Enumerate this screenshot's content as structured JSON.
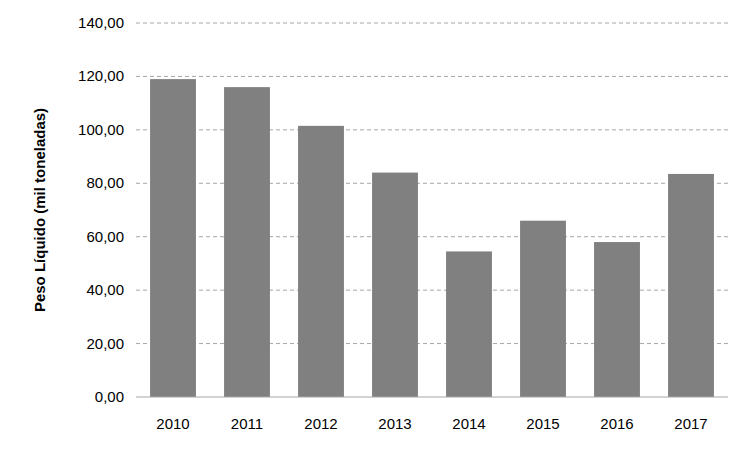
{
  "chart_data": {
    "type": "bar",
    "y_label": "Peso Líquido (mil toneladas)",
    "categories": [
      "2010",
      "2011",
      "2012",
      "2013",
      "2014",
      "2015",
      "2016",
      "2017"
    ],
    "values": [
      119,
      116,
      101.5,
      84,
      54.5,
      66,
      58,
      83.5
    ],
    "color": "#808080",
    "ylim": [
      0,
      140
    ],
    "yticks": [
      {
        "value": 0,
        "label": "0,00"
      },
      {
        "value": 20,
        "label": "20,00"
      },
      {
        "value": 40,
        "label": "40,00"
      },
      {
        "value": 60,
        "label": "60,00"
      },
      {
        "value": 80,
        "label": "80,00"
      },
      {
        "value": 100,
        "label": "100,00"
      },
      {
        "value": 120,
        "label": "120,00"
      },
      {
        "value": 140,
        "label": "140,00"
      }
    ],
    "grid": true
  }
}
